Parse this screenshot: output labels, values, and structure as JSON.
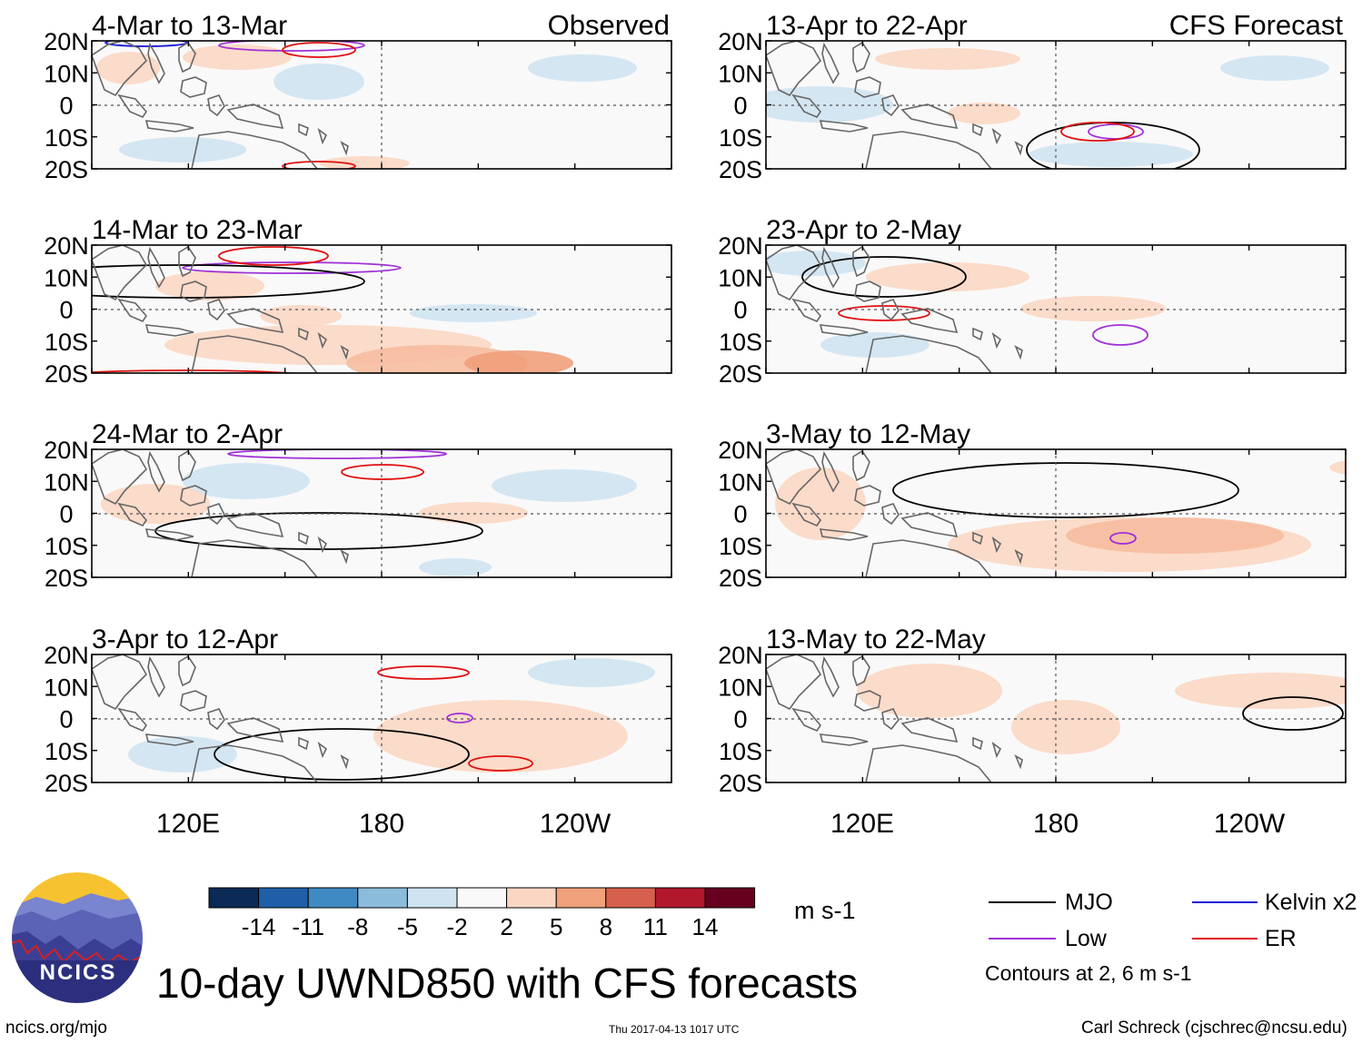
{
  "observed_label": "Observed",
  "forecast_label": "CFS Forecast",
  "panels_observed": [
    {
      "title": "4-Mar to 13-Mar"
    },
    {
      "title": "14-Mar to 23-Mar"
    },
    {
      "title": "24-Mar to 2-Apr"
    },
    {
      "title": "3-Apr to 12-Apr"
    }
  ],
  "panels_forecast": [
    {
      "title": "13-Apr to 22-Apr"
    },
    {
      "title": "23-Apr to 2-May"
    },
    {
      "title": "3-May to 12-May"
    },
    {
      "title": "13-May to 22-May"
    }
  ],
  "lat_labels": [
    "20N",
    "10N",
    "0",
    "10S",
    "20S"
  ],
  "lon_labels": [
    "120E",
    "180",
    "120W"
  ],
  "colorbar": {
    "tick_labels": [
      "-14",
      "-11",
      "-8",
      "-5",
      "-2",
      "2",
      "5",
      "8",
      "11",
      "14"
    ],
    "colors": [
      "#0b2a55",
      "#1f5fa8",
      "#3f8ac2",
      "#8cbcdb",
      "#cfe3f1",
      "#f9f9f9",
      "#fbd7c3",
      "#f0a07b",
      "#d6604d",
      "#b1182b",
      "#67001f"
    ],
    "units": "m s-1"
  },
  "legend": {
    "items": [
      {
        "label": "MJO",
        "color": "#000000"
      },
      {
        "label": "Kelvin x2",
        "color": "#1a1ad6"
      },
      {
        "label": "Low",
        "color": "#a030d8"
      },
      {
        "label": "ER",
        "color": "#e01010"
      }
    ],
    "contours_note": "Contours at 2, 6 m s-1"
  },
  "logo_text": "NCICS",
  "main_title": "10-day UWND850 with CFS forecasts",
  "footer": {
    "url": "ncics.org/mjo",
    "timestamp": "Thu 2017-04-13 1017 UTC",
    "credit": "Carl Schreck (cjschrec@ncsu.edu)"
  }
}
